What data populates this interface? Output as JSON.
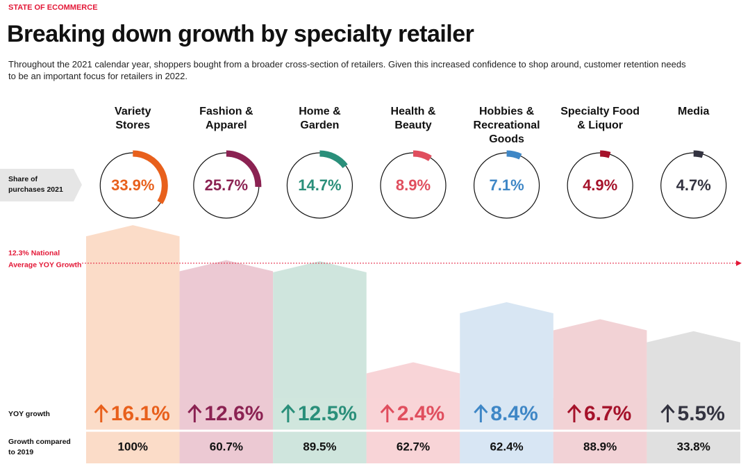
{
  "kicker": "STATE OF ECOMMERCE",
  "chart_data": {
    "type": "infographic",
    "title": "Breaking down growth by specialty retailer",
    "subtitle": "Throughout the 2021 calendar year, shoppers bought from a broader cross-section of retailers. Given this increased confidence to shop around, customer retention needs to be an important focus for retailers in 2022.",
    "categories": [
      "Variety\nStores",
      "Fashion &\nApparel",
      "Home &\nGarden",
      "Health &\nBeauty",
      "Hobbies &\nRecreational\nGoods",
      "Specialty Food\n& Liquor",
      "Media"
    ],
    "colors": [
      "#e8601c",
      "#8b2252",
      "#2a8f7a",
      "#e04e5e",
      "#3f87c6",
      "#a5122a",
      "#333340"
    ],
    "light_colors": [
      "#fbdcc8",
      "#ecc9d3",
      "#cfe5dd",
      "#f8d4d7",
      "#d8e6f3",
      "#f2d2d5",
      "#e0e0e0"
    ],
    "series": [
      {
        "name": "Share of purchases 2021",
        "values": [
          33.9,
          25.7,
          14.7,
          8.9,
          7.1,
          4.9,
          4.7
        ],
        "value_labels": [
          "33.9%",
          "25.7%",
          "14.7%",
          "8.9%",
          "7.1%",
          "4.9%",
          "4.7%"
        ]
      },
      {
        "name": "YOY growth",
        "values": [
          16.1,
          12.6,
          12.5,
          2.4,
          8.4,
          6.7,
          5.5
        ],
        "value_labels": [
          "16.1%",
          "12.6%",
          "12.5%",
          "2.4%",
          "8.4%",
          "6.7%",
          "5.5%"
        ]
      },
      {
        "name": "Growth compared to 2019",
        "values": [
          100,
          60.7,
          89.5,
          62.7,
          62.4,
          88.9,
          33.8
        ],
        "value_labels": [
          "100%",
          "60.7%",
          "89.5%",
          "62.7%",
          "62.4%",
          "88.9%",
          "33.8%"
        ]
      }
    ],
    "national_average": {
      "value": 12.3,
      "label_lines": [
        "12.3% National",
        "Average YOY Growth"
      ]
    }
  }
}
